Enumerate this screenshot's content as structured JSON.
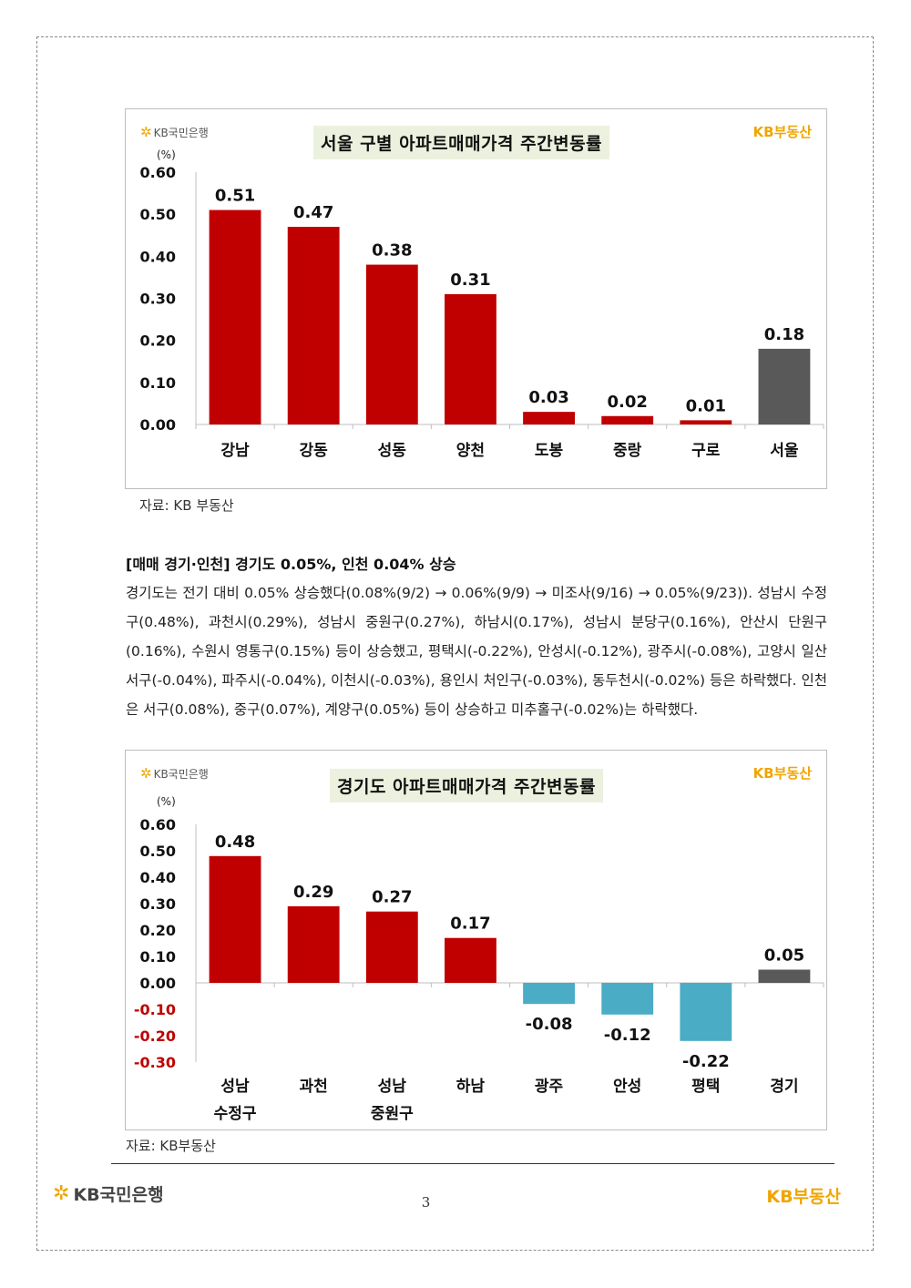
{
  "colors": {
    "positive_bar": "#c00000",
    "negative_bar": "#4bacc6",
    "total_bar": "#595959",
    "negative_tick": "#c00000",
    "title_bg": "#ebf1de"
  },
  "brand": {
    "left": "KB국민은행",
    "right": "KB부동산",
    "star_glyph": "✲"
  },
  "chart_data": [
    {
      "type": "bar",
      "title": "서울 구별 아파트매매가격 주간변동률",
      "unit_label": "(%)",
      "categories": [
        "강남",
        "강동",
        "성동",
        "양천",
        "도봉",
        "중랑",
        "구로",
        "서울"
      ],
      "values": [
        0.51,
        0.47,
        0.38,
        0.31,
        0.03,
        0.02,
        0.01,
        0.18
      ],
      "value_labels": [
        "0.51",
        "0.47",
        "0.38",
        "0.31",
        "0.03",
        "0.02",
        "0.01",
        "0.18"
      ],
      "yticks": [
        "0.60",
        "0.50",
        "0.40",
        "0.30",
        "0.20",
        "0.10",
        "0.00"
      ],
      "ylim": [
        0,
        0.6
      ],
      "total_index": 7,
      "source": "자료: KB 부동산"
    },
    {
      "type": "bar",
      "title": "경기도 아파트매매가격 주간변동률",
      "unit_label": "(%)",
      "categories": [
        "성남\n수정구",
        "과천",
        "성남\n중원구",
        "하남",
        "광주",
        "안성",
        "평택",
        "경기"
      ],
      "values": [
        0.48,
        0.29,
        0.27,
        0.17,
        -0.08,
        -0.12,
        -0.22,
        0.05
      ],
      "value_labels": [
        "0.48",
        "0.29",
        "0.27",
        "0.17",
        "-0.08",
        "-0.12",
        "-0.22",
        "0.05"
      ],
      "yticks": [
        "0.60",
        "0.50",
        "0.40",
        "0.30",
        "0.20",
        "0.10",
        "0.00",
        "-0.10",
        "-0.20",
        "-0.30"
      ],
      "ylim": [
        -0.3,
        0.6
      ],
      "total_index": 7,
      "source": "자료: KB부동산"
    }
  ],
  "body": {
    "heading": "[매매 경기·인천] 경기도 0.05%, 인천 0.04% 상승",
    "paragraph": "경기도는 전기 대비 0.05% 상승했다(0.08%(9/2) → 0.06%(9/9) → 미조사(9/16) → 0.05%(9/23)). 성남시 수정구(0.48%), 과천시(0.29%), 성남시 중원구(0.27%), 하남시(0.17%), 성남시 분당구(0.16%), 안산시 단원구(0.16%), 수원시 영통구(0.15%) 등이 상승했고, 평택시(-0.22%), 안성시(-0.12%), 광주시(-0.08%), 고양시 일산서구(-0.04%), 파주시(-0.04%), 이천시(-0.03%), 용인시 처인구(-0.03%), 동두천시(-0.02%) 등은 하락했다. 인천은 서구(0.08%), 중구(0.07%), 계양구(0.05%) 등이 상승하고 미추홀구(-0.02%)는 하락했다."
  },
  "footer": {
    "page_number": "3"
  }
}
